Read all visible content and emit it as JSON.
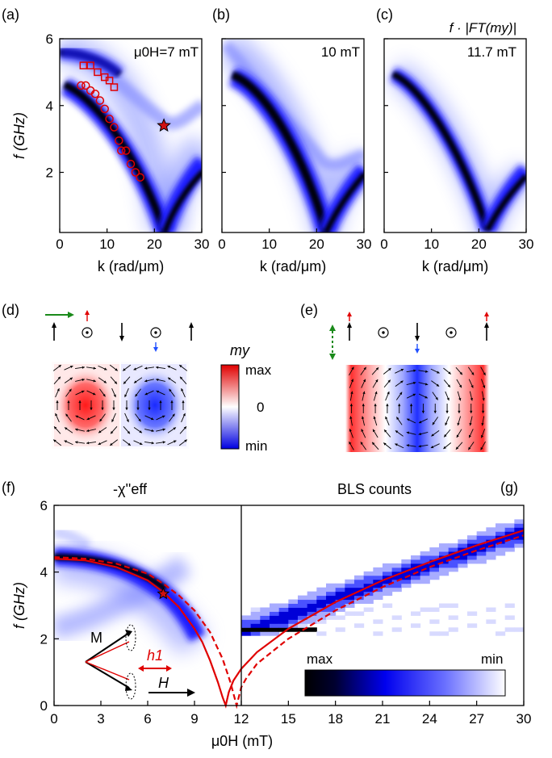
{
  "panels": {
    "a": {
      "label": "(a)",
      "field": "μ0H=7 mT"
    },
    "b": {
      "label": "(b)",
      "field": "10 mT"
    },
    "c": {
      "label": "(c)",
      "field": "11.7 mT",
      "quantity": "f · |FT(my)|"
    },
    "d": {
      "label": "(d)"
    },
    "e": {
      "label": "(e)"
    },
    "f": {
      "label": "(f)",
      "title": "-χ''eff"
    },
    "g": {
      "label": "(g)",
      "title": "BLS counts"
    }
  },
  "dispersion_axes": {
    "xlabel": "k (rad/μm)",
    "ylabel": "f (GHz)",
    "xticks": [
      "0",
      "10",
      "20",
      "30"
    ],
    "yticks": [
      "2",
      "4",
      "6"
    ]
  },
  "field_axes": {
    "xlabel": "μ0H (mT)",
    "ylabel": "f (GHz)",
    "xticks": [
      "0",
      "3",
      "6",
      "9",
      "12",
      "15",
      "18",
      "21",
      "24",
      "27",
      "30"
    ],
    "yticks": [
      "0",
      "2",
      "4",
      "6"
    ]
  },
  "my_colorbar": {
    "title": "my",
    "max": "max",
    "zero": "0",
    "min": "min"
  },
  "bls_colorbar": {
    "max": "max",
    "min": "min"
  },
  "inset": {
    "m_label": "M",
    "h1_label": "h1",
    "h_label": "H"
  },
  "colors": {
    "map": "#1a1aff",
    "dark": "#000000",
    "red": "#e00000",
    "green": "#1a8a1a",
    "blue": "#2050ff"
  },
  "chart_data": [
    {
      "type": "heatmap",
      "panel": "a",
      "xlabel": "k (rad/μm)",
      "ylabel": "f (GHz)",
      "xlim": [
        0,
        30
      ],
      "ylim": [
        0.2,
        6
      ],
      "markers_squares": [
        [
          5,
          5.2
        ],
        [
          6.5,
          5.2
        ],
        [
          8,
          5.0
        ],
        [
          9.5,
          4.85
        ],
        [
          10.5,
          4.75
        ],
        [
          11.5,
          4.55
        ]
      ],
      "markers_circles": [
        [
          4.5,
          4.6
        ],
        [
          5.5,
          4.6
        ],
        [
          6.5,
          4.45
        ],
        [
          7.5,
          4.35
        ],
        [
          8.5,
          4.15
        ],
        [
          9.5,
          3.9
        ],
        [
          10.5,
          3.6
        ],
        [
          11.5,
          3.35
        ],
        [
          12.5,
          2.95
        ],
        [
          13,
          2.65
        ],
        [
          14,
          2.65
        ],
        [
          15,
          2.25
        ],
        [
          16,
          2.0
        ],
        [
          17,
          1.85
        ]
      ],
      "star": [
        22,
        3.4
      ]
    },
    {
      "type": "heatmap",
      "panel": "b",
      "xlabel": "k (rad/μm)",
      "xlim": [
        0,
        30
      ],
      "ylim": [
        0.2,
        6
      ]
    },
    {
      "type": "heatmap",
      "panel": "c",
      "xlabel": "k (rad/μm)",
      "xlim": [
        0,
        30
      ],
      "ylim": [
        0.2,
        6
      ]
    },
    {
      "type": "line",
      "panel": "f-g",
      "xlabel": "μ0H (mT)",
      "ylabel": "f (GHz)",
      "xlim": [
        0,
        30
      ],
      "ylim": [
        0,
        6
      ],
      "series": [
        {
          "style": "solid",
          "x": [
            0,
            2,
            4,
            6,
            7,
            8,
            9,
            9.5,
            10,
            10.5,
            10.8,
            11.0,
            11.2,
            11.5,
            12,
            13,
            15,
            18,
            21,
            24,
            27,
            30
          ],
          "y": [
            4.4,
            4.35,
            4.15,
            3.75,
            3.4,
            2.95,
            2.3,
            1.9,
            1.35,
            0.7,
            0.25,
            0.0,
            0.4,
            0.75,
            1.1,
            1.6,
            2.3,
            3.1,
            3.75,
            4.3,
            4.8,
            5.25
          ]
        },
        {
          "style": "dashed",
          "x": [
            0,
            2,
            4,
            6,
            7,
            8,
            9,
            10,
            10.8,
            11.3,
            11.7,
            12.0,
            12.3,
            13,
            15,
            18,
            21,
            24,
            27,
            30
          ],
          "y": [
            4.45,
            4.4,
            4.25,
            3.95,
            3.65,
            3.3,
            2.85,
            2.2,
            1.4,
            0.7,
            0.0,
            0.55,
            0.8,
            1.25,
            2.0,
            2.85,
            3.55,
            4.15,
            4.65,
            5.1
          ]
        }
      ],
      "star": [
        7,
        3.35
      ]
    }
  ]
}
